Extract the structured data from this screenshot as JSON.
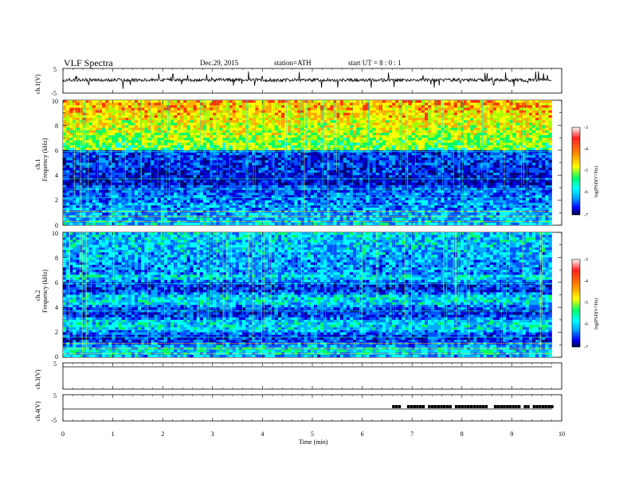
{
  "header": {
    "title": "VLF  Spectra",
    "date": "Dec.29, 2015",
    "station": "station=ATH",
    "start": "start  UT =   8 : 0 : 1"
  },
  "panels": {
    "ch1_wave_label": "ch.1(V)",
    "ch1_spec_label_1": "ch.1",
    "ch1_spec_label_2": "Frequency  (kHz)",
    "ch2_spec_label_1": "ch.2",
    "ch2_spec_label_2": "Frequency  (kHz)",
    "ch3_wave_label": "ch.3(V)",
    "ch4_wave_label": "ch.4(V)",
    "xlabel": "Time  (min)"
  },
  "colorbar": {
    "label": "log(PSD(V²/Hz)",
    "ticks": [
      "-3",
      "-4",
      "-5",
      "-6",
      "-7"
    ],
    "colors": [
      "#ffffff",
      "#ff2020",
      "#ff8800",
      "#ffff00",
      "#00ff66",
      "#00ffff",
      "#00aaff",
      "#0000ff",
      "#000040"
    ]
  },
  "chart_data": [
    {
      "type": "line",
      "name": "ch.1 waveform",
      "ylabel": "ch.1(V)",
      "yticks": [
        "5",
        "-5"
      ],
      "ylim": [
        -5,
        5
      ],
      "xlim": [
        0,
        10
      ],
      "baseline": 0
    },
    {
      "type": "heatmap",
      "name": "ch.1 spectrogram",
      "ylabel": "Frequency  (kHz)",
      "yticks": [
        "10",
        "8",
        "6",
        "4",
        "2",
        "0"
      ],
      "ylim": [
        0,
        10
      ],
      "xlim": [
        0,
        9.8
      ],
      "colorscale_range": [
        -7,
        -3
      ]
    },
    {
      "type": "heatmap",
      "name": "ch.2 spectrogram",
      "ylabel": "Frequency  (kHz)",
      "yticks": [
        "10",
        "8",
        "6",
        "4",
        "2",
        "0"
      ],
      "ylim": [
        0,
        10
      ],
      "xlim": [
        0,
        9.8
      ],
      "colorscale_range": [
        -7,
        -3
      ]
    },
    {
      "type": "line",
      "name": "ch.3 waveform",
      "ylabel": "ch.3(V)",
      "yticks": [
        "5"
      ],
      "ylim": [
        -5,
        5
      ]
    },
    {
      "type": "line",
      "name": "ch.4 waveform",
      "ylabel": "ch.4(V)",
      "yticks": [
        "5",
        "-5"
      ],
      "ylim": [
        -5,
        5
      ],
      "pulse_start_min": 6.6,
      "pulse_end_min": 9.8
    },
    {
      "type": "axis",
      "xlabel": "Time  (min)",
      "xticks": [
        "0",
        "1",
        "2",
        "3",
        "4",
        "5",
        "6",
        "7",
        "8",
        "9",
        "10"
      ],
      "xlim": [
        0,
        10
      ]
    }
  ]
}
